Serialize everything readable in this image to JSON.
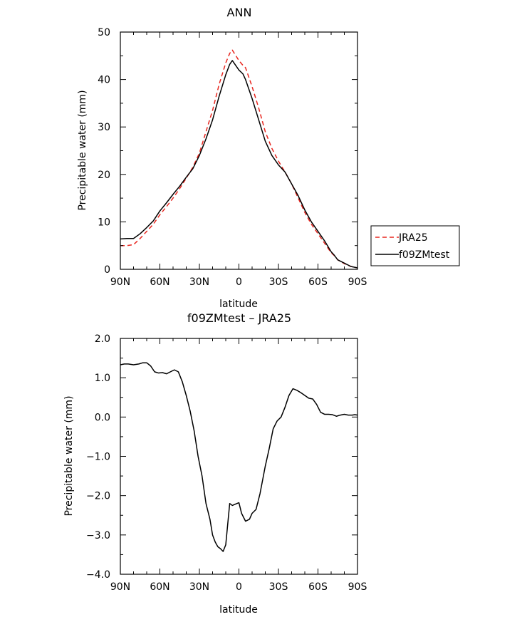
{
  "chart_data": [
    {
      "type": "line",
      "title": "ANN",
      "xlabel": "latitude",
      "ylabel": "Precipitable water (mm)",
      "xlim": [
        90,
        -90
      ],
      "ylim": [
        0,
        50
      ],
      "xticks": [
        90,
        60,
        30,
        0,
        -30,
        -60,
        -90
      ],
      "xticklabels": [
        "90N",
        "60N",
        "30N",
        "0",
        "30S",
        "60S",
        "90S"
      ],
      "yticks": [
        0,
        10,
        20,
        30,
        40,
        50
      ],
      "yticklabels": [
        "0",
        "10",
        "20",
        "30",
        "40",
        "50"
      ],
      "legend_position": "right",
      "series": [
        {
          "name": "JRA25",
          "color": "#e8261f",
          "dash": "dashed",
          "x": [
            90,
            85,
            80,
            75,
            70,
            65,
            60,
            55,
            50,
            45,
            40,
            35,
            30,
            25,
            20,
            15,
            10,
            7,
            5,
            3,
            0,
            -3,
            -5,
            -10,
            -15,
            -20,
            -25,
            -30,
            -35,
            -40,
            -45,
            -50,
            -55,
            -60,
            -65,
            -70,
            -72,
            -75,
            -80,
            -85,
            -90
          ],
          "y": [
            5.0,
            5.0,
            5.2,
            6.5,
            8.0,
            9.5,
            11.5,
            13.2,
            15.0,
            17.0,
            19.2,
            21.5,
            24.5,
            29.0,
            33.5,
            39.0,
            43.5,
            45.5,
            46.2,
            45.3,
            44.0,
            43.0,
            42.5,
            38.5,
            34.0,
            29.0,
            25.5,
            22.8,
            20.5,
            18.0,
            15.0,
            12.0,
            9.5,
            7.5,
            5.5,
            3.5,
            3.0,
            2.0,
            1.2,
            0.6,
            0.3
          ]
        },
        {
          "name": "f09ZMtest",
          "color": "#000000",
          "dash": "solid",
          "x": [
            90,
            85,
            80,
            75,
            70,
            65,
            60,
            55,
            50,
            45,
            40,
            35,
            30,
            25,
            20,
            15,
            10,
            7,
            5,
            3,
            0,
            -3,
            -5,
            -10,
            -15,
            -20,
            -25,
            -30,
            -35,
            -40,
            -45,
            -50,
            -55,
            -60,
            -65,
            -70,
            -72,
            -75,
            -80,
            -85,
            -90
          ],
          "y": [
            6.4,
            6.5,
            6.5,
            7.5,
            8.8,
            10.2,
            12.3,
            14.0,
            15.8,
            17.5,
            19.4,
            21.2,
            24.0,
            27.5,
            31.5,
            36.5,
            41.0,
            43.2,
            44.0,
            43.2,
            42.0,
            41.2,
            40.0,
            36.0,
            31.5,
            27.0,
            24.0,
            22.0,
            20.5,
            18.0,
            15.5,
            12.5,
            10.0,
            8.0,
            6.0,
            3.7,
            3.1,
            2.0,
            1.3,
            0.6,
            0.3
          ]
        }
      ]
    },
    {
      "type": "line",
      "title": "f09ZMtest – JRA25",
      "xlabel": "latitude",
      "ylabel": "Precipitable water (mm)",
      "xlim": [
        90,
        -90
      ],
      "ylim": [
        -4.0,
        2.0
      ],
      "xticks": [
        90,
        60,
        30,
        0,
        -30,
        -60,
        -90
      ],
      "xticklabels": [
        "90N",
        "60N",
        "30N",
        "0",
        "30S",
        "60S",
        "90S"
      ],
      "yticks": [
        -4.0,
        -3.0,
        -2.0,
        -1.0,
        0.0,
        1.0,
        2.0
      ],
      "yticklabels": [
        "−4.0",
        "−3.0",
        "−2.0",
        "−1.0",
        "0.0",
        "1.0",
        "2.0"
      ],
      "series": [
        {
          "name": "",
          "color": "#000000",
          "dash": "solid",
          "x": [
            90,
            87,
            84,
            80,
            76,
            73,
            70,
            67,
            64,
            61,
            58,
            55,
            52,
            49,
            46,
            43,
            40,
            37,
            34,
            31,
            28,
            25,
            22,
            20,
            18,
            16,
            14,
            12,
            10,
            7,
            5,
            3,
            0,
            -2,
            -5,
            -8,
            -10,
            -13,
            -16,
            -18,
            -20,
            -23,
            -26,
            -29,
            -32,
            -35,
            -38,
            -41,
            -44,
            -47,
            -50,
            -53,
            -56,
            -59,
            -62,
            -65,
            -68,
            -71,
            -74,
            -77,
            -80,
            -83,
            -86,
            -88,
            -90
          ],
          "y": [
            1.33,
            1.35,
            1.35,
            1.33,
            1.35,
            1.38,
            1.38,
            1.3,
            1.15,
            1.12,
            1.13,
            1.1,
            1.15,
            1.2,
            1.15,
            0.9,
            0.55,
            0.15,
            -0.35,
            -1.0,
            -1.5,
            -2.2,
            -2.6,
            -3.0,
            -3.18,
            -3.3,
            -3.35,
            -3.42,
            -3.25,
            -2.2,
            -2.25,
            -2.22,
            -2.18,
            -2.45,
            -2.65,
            -2.6,
            -2.45,
            -2.35,
            -1.95,
            -1.6,
            -1.25,
            -0.8,
            -0.3,
            -0.1,
            0.0,
            0.25,
            0.55,
            0.72,
            0.68,
            0.62,
            0.55,
            0.48,
            0.46,
            0.32,
            0.12,
            0.07,
            0.07,
            0.06,
            0.02,
            0.05,
            0.07,
            0.05,
            0.05,
            0.06,
            0.05
          ]
        }
      ]
    }
  ]
}
